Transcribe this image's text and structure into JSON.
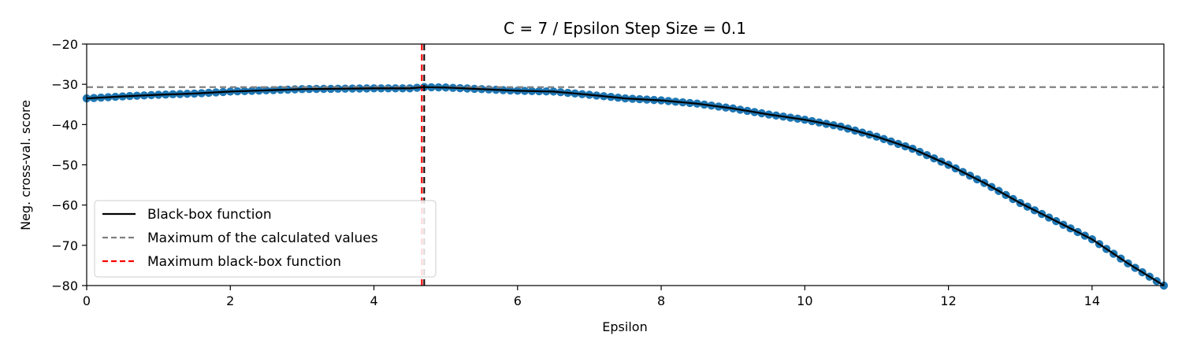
{
  "chart_data": {
    "type": "line",
    "title": "C = 7 / Epsilon Step Size = 0.1",
    "xlabel": "Epsilon",
    "ylabel": "Neg. cross-val. score",
    "xlim": [
      0,
      15
    ],
    "ylim": [
      -80,
      -20
    ],
    "xticks": [
      0,
      2,
      4,
      6,
      8,
      10,
      12,
      14
    ],
    "yticks": [
      -80,
      -70,
      -60,
      -50,
      -40,
      -30,
      -20
    ],
    "xtick_labels": [
      "0",
      "2",
      "4",
      "6",
      "8",
      "10",
      "12",
      "14"
    ],
    "ytick_labels": [
      "−80",
      "−70",
      "−60",
      "−50",
      "−40",
      "−30",
      "−20"
    ],
    "grid": false,
    "legend_position": "lower-left",
    "x_step": 0.1,
    "curve_points": [
      [
        0,
        -33.5
      ],
      [
        0.5,
        -33.0
      ],
      [
        1.0,
        -32.6
      ],
      [
        1.5,
        -32.3
      ],
      [
        2.0,
        -31.8
      ],
      [
        2.5,
        -31.5
      ],
      [
        3.0,
        -31.2
      ],
      [
        3.5,
        -31.1
      ],
      [
        4.0,
        -31.0
      ],
      [
        4.5,
        -31.0
      ],
      [
        4.7,
        -30.7
      ],
      [
        5.0,
        -30.8
      ],
      [
        5.5,
        -31.2
      ],
      [
        6.0,
        -31.6
      ],
      [
        6.5,
        -31.8
      ],
      [
        7.0,
        -32.6
      ],
      [
        7.5,
        -33.5
      ],
      [
        8.0,
        -34.0
      ],
      [
        8.5,
        -34.8
      ],
      [
        9.0,
        -36.0
      ],
      [
        9.5,
        -37.5
      ],
      [
        10.0,
        -38.8
      ],
      [
        10.5,
        -40.5
      ],
      [
        11.0,
        -43.0
      ],
      [
        11.5,
        -46.0
      ],
      [
        12.0,
        -50.0
      ],
      [
        12.5,
        -54.5
      ],
      [
        13.0,
        -59.5
      ],
      [
        13.5,
        -64.0
      ],
      [
        14.0,
        -68.5
      ],
      [
        14.5,
        -74.5
      ],
      [
        15.0,
        -80.0
      ]
    ],
    "max_calculated_value": -30.7,
    "max_blackbox_epsilon": 4.7,
    "legend": [
      {
        "label": "Black-box function",
        "color": "#000000",
        "style": "solid"
      },
      {
        "label": "Maximum of the calculated values",
        "color": "#808080",
        "style": "dashed"
      },
      {
        "label": "Maximum black-box function",
        "color": "#ff0000",
        "style": "dashed"
      }
    ],
    "colors": {
      "points": "#1f77b4",
      "blackbox": "#000000",
      "max_calculated": "#808080",
      "max_blackbox": "#ff0000"
    }
  }
}
